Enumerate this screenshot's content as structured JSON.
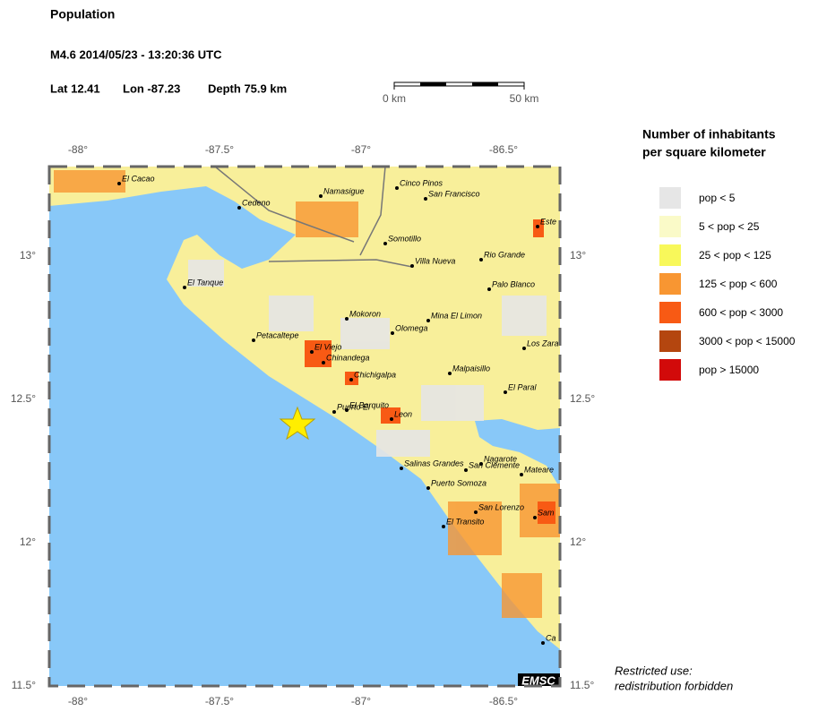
{
  "header": {
    "title": "Population",
    "event": "M4.6  2014/05/23 - 13:20:36 UTC",
    "lat": "Lat 12.41",
    "lon": "Lon -87.23",
    "depth": "Depth  75.9 km"
  },
  "scale": {
    "start": "0 km",
    "end": "50 km"
  },
  "map": {
    "lon_ticks": [
      "-88°",
      "-87.5°",
      "-87°",
      "-86.5°"
    ],
    "lat_ticks": [
      "13°",
      "12.5°",
      "12°",
      "11.5°"
    ],
    "places": [
      "El Cacao",
      "Cedeno",
      "Namasigue",
      "Cinco Pinos",
      "San Francisco",
      "Somotillo",
      "Rio Grande",
      "Villa Nueva",
      "Palo Blanco",
      "El Tanque",
      "Mokoron",
      "Mina El Limon",
      "Olomega",
      "Petacaltepe",
      "El Viejo",
      "Chinandega",
      "Los Zara",
      "Malpaisillo",
      "Chichigalpa",
      "El Paral",
      "Puerto El",
      "El Barquito",
      "Leon",
      "Salinas Grandes",
      "Nagarote",
      "San Clemente",
      "Mateare",
      "Puerto Somoza",
      "San Lorenzo",
      "Sam",
      "El Transito",
      "Este",
      "Ca"
    ],
    "badge": "EMSC"
  },
  "legend": {
    "title": [
      "Number of inhabitants",
      "per square kilometer"
    ],
    "items": [
      {
        "label": "pop < 5",
        "color": "#e6e6e6"
      },
      {
        "label": "5 < pop < 25",
        "color": "#fafac8"
      },
      {
        "label": "25 < pop < 125",
        "color": "#f8f85a"
      },
      {
        "label": "125 < pop < 600",
        "color": "#f89632"
      },
      {
        "label": "600 < pop < 3000",
        "color": "#f85a14"
      },
      {
        "label": "3000 < pop < 15000",
        "color": "#b4460f"
      },
      {
        "label": "pop > 15000",
        "color": "#d20a0a"
      }
    ]
  },
  "footer": {
    "lines": [
      "Restricted use:",
      "redistribution forbidden"
    ]
  }
}
